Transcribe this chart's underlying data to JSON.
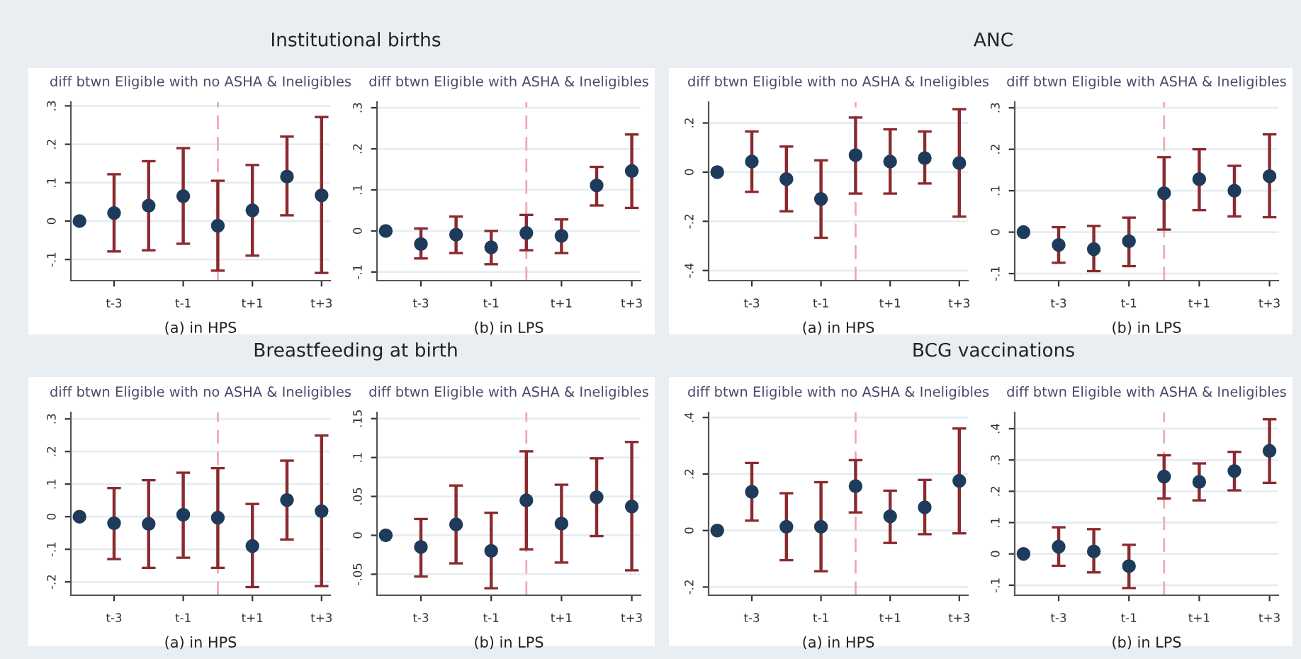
{
  "chart_data": [
    {
      "type": "scatter",
      "title": "Institutional births",
      "subtitle": "diff btwn Eligible with no ASHA & Ineligibles",
      "xlabel": "(a) in HPS",
      "categories": [
        null,
        "t-3",
        null,
        "t-1",
        null,
        "t+1",
        null,
        "t+3"
      ],
      "ylim": [
        -0.155,
        0.31
      ],
      "yticks": [
        {
          "value": -0.1,
          "label": "-.1"
        },
        0,
        {
          "value": 0.1,
          "label": ".1"
        },
        {
          "value": 0.2,
          "label": ".2"
        },
        {
          "value": 0.3,
          "label": ".3"
        }
      ],
      "grid": "y",
      "marker": "circle",
      "series": [
        {
          "color": "#1f3b5c",
          "values": [
            0,
            0.021,
            0.04,
            0.065,
            -0.012,
            0.028,
            0.116,
            0.067
          ],
          "errors": [
            null,
            [
              -0.079,
              0.122
            ],
            [
              -0.076,
              0.156
            ],
            [
              -0.059,
              0.19
            ],
            [
              -0.129,
              0.105
            ],
            [
              -0.09,
              0.146
            ],
            [
              0.015,
              0.22
            ],
            [
              -0.135,
              0.271
            ]
          ]
        }
      ]
    },
    {
      "type": "scatter",
      "subtitle": "diff btwn Eligible with ASHA & Ineligibles",
      "xlabel": "(b) in LPS",
      "categories": [
        null,
        "t-3",
        null,
        "t-1",
        null,
        "t+1",
        null,
        "t+3"
      ],
      "ylim": [
        -0.121,
        0.314
      ],
      "yticks": [
        {
          "value": -0.1,
          "label": "-.1"
        },
        0,
        {
          "value": 0.1,
          "label": ".1"
        },
        {
          "value": 0.2,
          "label": ".2"
        },
        {
          "value": 0.3,
          "label": ".3"
        }
      ],
      "grid": "y",
      "marker": "circle",
      "series": [
        {
          "color": "#1f3b5c",
          "values": [
            0,
            -0.032,
            -0.009,
            -0.04,
            -0.005,
            -0.012,
            0.111,
            0.146
          ],
          "errors": [
            null,
            [
              -0.067,
              0.006
            ],
            [
              -0.054,
              0.035
            ],
            [
              -0.081,
              0.0
            ],
            [
              -0.047,
              0.039
            ],
            [
              -0.054,
              0.028
            ],
            [
              0.062,
              0.156
            ],
            [
              0.056,
              0.235
            ]
          ]
        }
      ]
    },
    {
      "type": "scatter",
      "title": "ANC",
      "subtitle": "diff btwn Eligible with no ASHA & Ineligibles",
      "xlabel": "(a) in HPS",
      "categories": [
        null,
        "t-3",
        null,
        "t-1",
        null,
        "t+1",
        null,
        "t+3"
      ],
      "ylim": [
        -0.441,
        0.285
      ],
      "yticks": [
        {
          "value": -0.4,
          "label": "-.4"
        },
        {
          "value": -0.2,
          "label": "-.2"
        },
        0,
        {
          "value": 0.2,
          "label": ".2"
        }
      ],
      "grid": "y",
      "marker": "circle",
      "series": [
        {
          "color": "#1f3b5c",
          "values": [
            0,
            0.043,
            -0.028,
            -0.109,
            0.069,
            0.043,
            0.057,
            0.037
          ],
          "errors": [
            null,
            [
              -0.08,
              0.165
            ],
            [
              -0.159,
              0.104
            ],
            [
              -0.267,
              0.048
            ],
            [
              -0.087,
              0.222
            ],
            [
              -0.087,
              0.174
            ],
            [
              -0.046,
              0.165
            ],
            [
              -0.181,
              0.256
            ]
          ]
        }
      ]
    },
    {
      "type": "scatter",
      "subtitle": "diff btwn Eligible with ASHA & Ineligibles",
      "xlabel": "(b) in LPS",
      "categories": [
        null,
        "t-3",
        null,
        "t-1",
        null,
        "t+1",
        null,
        "t+3"
      ],
      "ylim": [
        -0.117,
        0.314
      ],
      "yticks": [
        {
          "value": -0.1,
          "label": "-.1"
        },
        0,
        {
          "value": 0.1,
          "label": ".1"
        },
        {
          "value": 0.2,
          "label": ".2"
        },
        {
          "value": 0.3,
          "label": ".3"
        }
      ],
      "grid": "y",
      "marker": "circle",
      "series": [
        {
          "color": "#1f3b5c",
          "values": [
            0,
            -0.031,
            -0.041,
            -0.022,
            0.094,
            0.128,
            0.1,
            0.135
          ],
          "errors": [
            null,
            [
              -0.074,
              0.012
            ],
            [
              -0.094,
              0.015
            ],
            [
              -0.082,
              0.035
            ],
            [
              0.006,
              0.181
            ],
            [
              0.053,
              0.2
            ],
            [
              0.038,
              0.16
            ],
            [
              0.036,
              0.236
            ]
          ]
        }
      ]
    },
    {
      "type": "scatter",
      "title": "Breastfeeding at birth",
      "subtitle": "diff btwn Eligible with no ASHA & Ineligibles",
      "xlabel": "(a) in HPS",
      "categories": [
        null,
        "t-3",
        null,
        "t-1",
        null,
        "t+1",
        null,
        "t+3"
      ],
      "ylim": [
        -0.241,
        0.32
      ],
      "yticks": [
        {
          "value": -0.2,
          "label": "-.2"
        },
        {
          "value": -0.1,
          "label": "-.1"
        },
        0,
        {
          "value": 0.1,
          "label": ".1"
        },
        {
          "value": 0.2,
          "label": ".2"
        },
        {
          "value": 0.3,
          "label": ".3"
        }
      ],
      "grid": "y",
      "marker": "circle",
      "series": [
        {
          "color": "#1f3b5c",
          "values": [
            0,
            -0.02,
            -0.022,
            0.006,
            -0.003,
            -0.09,
            0.051,
            0.017
          ],
          "errors": [
            null,
            [
              -0.13,
              0.088
            ],
            [
              -0.157,
              0.112
            ],
            [
              -0.126,
              0.135
            ],
            [
              -0.157,
              0.149
            ],
            [
              -0.216,
              0.039
            ],
            [
              -0.07,
              0.172
            ],
            [
              -0.213,
              0.249
            ]
          ]
        }
      ]
    },
    {
      "type": "scatter",
      "subtitle": "diff btwn Eligible with ASHA & Ineligibles",
      "xlabel": "(b) in LPS",
      "categories": [
        null,
        "t-3",
        null,
        "t-1",
        null,
        "t+1",
        null,
        "t+3"
      ],
      "ylim": [
        -0.077,
        0.158
      ],
      "yticks": [
        {
          "value": -0.05,
          "label": "-.05"
        },
        0,
        {
          "value": 0.05,
          "label": ".05"
        },
        {
          "value": 0.1,
          "label": ".1"
        },
        {
          "value": 0.15,
          "label": ".15"
        }
      ],
      "grid": "y",
      "marker": "circle",
      "series": [
        {
          "color": "#1f3b5c",
          "values": [
            0,
            -0.015,
            0.014,
            -0.02,
            0.045,
            0.015,
            0.049,
            0.037
          ],
          "errors": [
            null,
            [
              -0.053,
              0.021
            ],
            [
              -0.036,
              0.064
            ],
            [
              -0.068,
              0.029
            ],
            [
              -0.018,
              0.108
            ],
            [
              -0.035,
              0.065
            ],
            [
              -0.001,
              0.099
            ],
            [
              -0.045,
              0.12
            ]
          ]
        }
      ]
    },
    {
      "type": "scatter",
      "title": "BCG vaccinations",
      "subtitle": "diff btwn Eligible with no ASHA & Ineligibles",
      "xlabel": "(a) in HPS",
      "categories": [
        null,
        "t-3",
        null,
        "t-1",
        null,
        "t+1",
        null,
        "t+3"
      ],
      "ylim": [
        -0.229,
        0.418
      ],
      "yticks": [
        {
          "value": -0.2,
          "label": "-.2"
        },
        0,
        {
          "value": 0.2,
          "label": ".2"
        },
        {
          "value": 0.4,
          "label": ".4"
        }
      ],
      "grid": "y",
      "marker": "circle",
      "series": [
        {
          "color": "#1f3b5c",
          "values": [
            0,
            0.137,
            0.013,
            0.013,
            0.157,
            0.05,
            0.082,
            0.176
          ],
          "errors": [
            null,
            [
              0.035,
              0.239
            ],
            [
              -0.105,
              0.132
            ],
            [
              -0.144,
              0.171
            ],
            [
              0.064,
              0.249
            ],
            [
              -0.044,
              0.141
            ],
            [
              -0.013,
              0.179
            ],
            [
              -0.01,
              0.361
            ]
          ]
        }
      ]
    },
    {
      "type": "scatter",
      "subtitle": "diff btwn Eligible with ASHA & Ineligibles",
      "xlabel": "(b) in LPS",
      "categories": [
        null,
        "t-3",
        null,
        "t-1",
        null,
        "t+1",
        null,
        "t+3"
      ],
      "ylim": [
        -0.132,
        0.452
      ],
      "yticks": [
        {
          "value": -0.1,
          "label": "-.1"
        },
        0,
        {
          "value": 0.1,
          "label": ".1"
        },
        {
          "value": 0.2,
          "label": ".2"
        },
        {
          "value": 0.3,
          "label": ".3"
        },
        {
          "value": 0.4,
          "label": ".4"
        }
      ],
      "grid": "y",
      "marker": "circle",
      "series": [
        {
          "color": "#1f3b5c",
          "values": [
            0,
            0.023,
            0.008,
            -0.039,
            0.247,
            0.23,
            0.265,
            0.329
          ],
          "errors": [
            null,
            [
              -0.038,
              0.085
            ],
            [
              -0.059,
              0.079
            ],
            [
              -0.109,
              0.029
            ],
            [
              0.177,
              0.315
            ],
            [
              0.171,
              0.289
            ],
            [
              0.203,
              0.326
            ],
            [
              0.227,
              0.43
            ]
          ]
        }
      ]
    }
  ]
}
